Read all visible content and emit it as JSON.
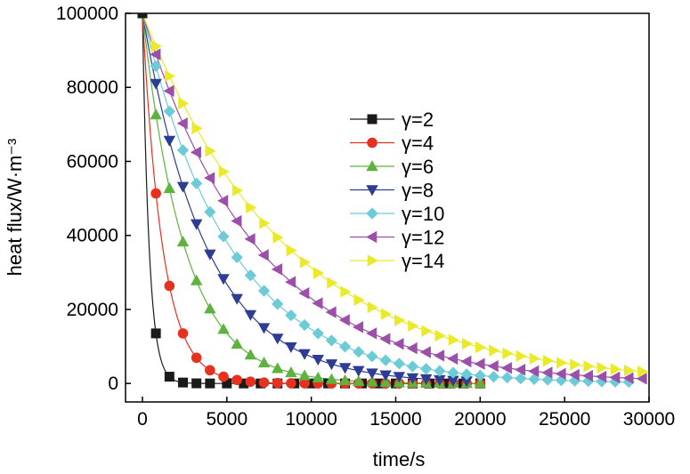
{
  "chart_data": {
    "type": "line",
    "xlabel": "time/s",
    "ylabel": "heat flux/W·m⁻³",
    "xlim": [
      -1000,
      30000
    ],
    "ylim": [
      -5000,
      100000
    ],
    "xticks": [
      0,
      5000,
      10000,
      15000,
      20000,
      25000,
      30000
    ],
    "yticks": [
      0,
      20000,
      40000,
      60000,
      80000,
      100000
    ],
    "xtick_labels": [
      "0",
      "5000",
      "10000",
      "15000",
      "20000",
      "25000",
      "30000"
    ],
    "ytick_labels": [
      "0",
      "20000",
      "40000",
      "60000",
      "80000",
      "100000"
    ],
    "legend_position": "center-right",
    "series": [
      {
        "name": "γ=2",
        "marker": "square",
        "color": "#1a1a1a",
        "tau": 400,
        "marker_x": [
          0,
          800,
          1600,
          2400,
          3200,
          4000,
          5000,
          6000,
          7000,
          8000,
          9000,
          10000,
          11000,
          12000,
          13000,
          14000,
          15000,
          16000,
          17000,
          18000,
          19000,
          20000
        ]
      },
      {
        "name": "γ=4",
        "marker": "circle",
        "color": "#e8301f",
        "tau": 1200,
        "marker_x": [
          800,
          1600,
          2400,
          3200,
          4000,
          4800,
          5600,
          6400,
          7200,
          8000,
          8800,
          9600,
          10400,
          11200,
          12000,
          12800,
          13600,
          14400,
          15200,
          16000,
          16800,
          17600,
          18400,
          19200,
          20000
        ]
      },
      {
        "name": "γ=6",
        "marker": "triangle-up",
        "color": "#5db33d",
        "tau": 2500,
        "marker_x": [
          800,
          1600,
          2400,
          3200,
          4000,
          4800,
          5600,
          6400,
          7200,
          8000,
          8800,
          9600,
          10400,
          11200,
          12000,
          12800,
          13600,
          14400,
          15200,
          16000,
          16800,
          17600,
          18400,
          19200,
          20000
        ]
      },
      {
        "name": "γ=8",
        "marker": "triangle-down",
        "color": "#2d3d93",
        "tau": 3800,
        "marker_x": [
          800,
          1600,
          2400,
          3200,
          4000,
          4800,
          5600,
          6400,
          7200,
          8000,
          8800,
          9600,
          10400,
          11200,
          12000,
          12800,
          13600,
          14400,
          15200,
          16000,
          16800,
          17600,
          18400,
          19200
        ]
      },
      {
        "name": "γ=10",
        "marker": "diamond",
        "color": "#6ccbd6",
        "tau": 5200,
        "marker_x": [
          800,
          1600,
          2400,
          3200,
          4000,
          4800,
          5600,
          6400,
          7200,
          8000,
          8800,
          9600,
          10400,
          11200,
          12000,
          12800,
          13600,
          14400,
          15200,
          16000,
          16800,
          17600,
          18400,
          19200,
          20000,
          20800,
          21600,
          22400,
          23200,
          24000,
          24800,
          25600,
          26400,
          27200,
          28000,
          28800
        ]
      },
      {
        "name": "γ=12",
        "marker": "triangle-left",
        "color": "#9b4fa8",
        "tau": 6800,
        "marker_x": [
          800,
          1600,
          2400,
          3200,
          4000,
          4800,
          5600,
          6400,
          7200,
          8000,
          8800,
          9600,
          10400,
          11200,
          12000,
          12800,
          13600,
          14400,
          15200,
          16000,
          16800,
          17600,
          18400,
          19200,
          20000,
          20800,
          21600,
          22400,
          23200,
          24000,
          24800,
          25600,
          26400,
          27200,
          28000,
          28800,
          29600
        ]
      },
      {
        "name": "γ=14",
        "marker": "triangle-right",
        "color": "#eaea2a",
        "tau": 8600,
        "marker_x": [
          800,
          1600,
          2400,
          3200,
          4000,
          4800,
          5600,
          6400,
          7200,
          8000,
          8800,
          9600,
          10400,
          11200,
          12000,
          12800,
          13600,
          14400,
          15200,
          16000,
          16800,
          17600,
          18400,
          19200,
          20000,
          20800,
          21600,
          22400,
          23200,
          24000,
          24800,
          25600,
          26400,
          27200,
          28000,
          28800,
          29600
        ]
      }
    ],
    "curve_model": "y = 100000 * exp(-t / tau)"
  }
}
